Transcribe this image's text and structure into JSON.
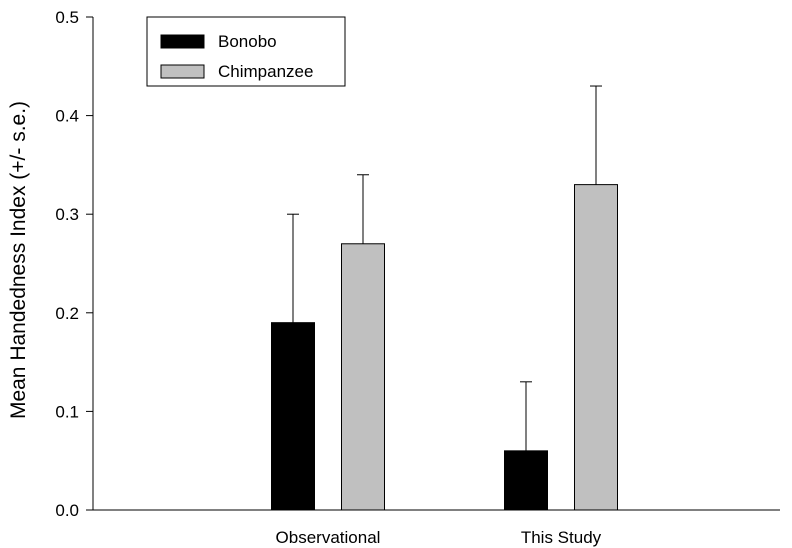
{
  "chart_data": {
    "type": "bar",
    "title": "",
    "xlabel": "",
    "ylabel": "Mean Handedness Index (+/- s.e.)",
    "ylim": [
      0,
      0.5
    ],
    "yticks": [
      "0.0",
      "0.1",
      "0.2",
      "0.3",
      "0.4",
      "0.5"
    ],
    "categories": [
      "Observational",
      "This Study"
    ],
    "series": [
      {
        "name": "Bonobo",
        "values": [
          0.19,
          0.06
        ],
        "errors": [
          0.11,
          0.07
        ],
        "color": "#000000"
      },
      {
        "name": "Chimpanzee",
        "values": [
          0.27,
          0.33
        ],
        "errors": [
          0.07,
          0.1
        ],
        "color": "#c0c0c0"
      }
    ],
    "grid": false,
    "error_bars": "upper",
    "legend": {
      "placement": "top-left"
    }
  }
}
